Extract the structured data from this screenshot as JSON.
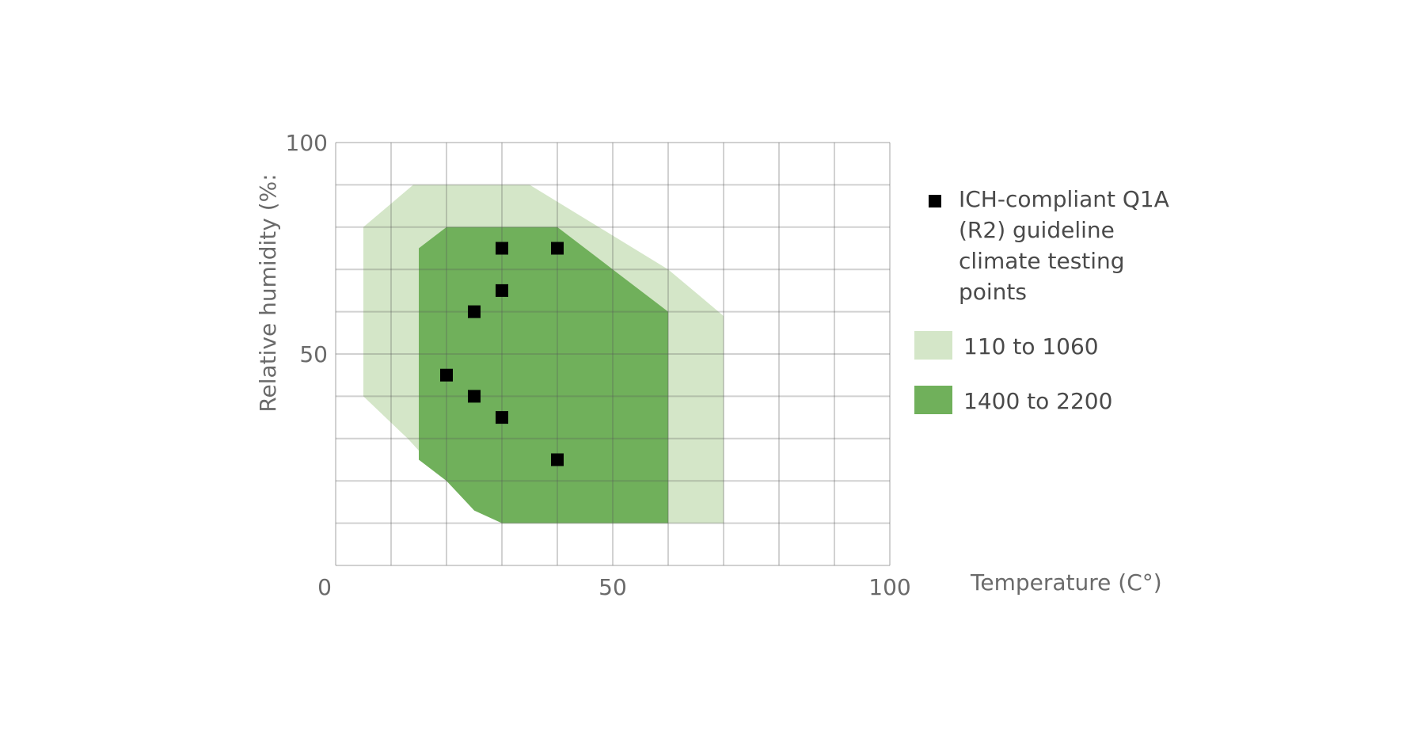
{
  "chart_data": {
    "type": "area",
    "xlabel": "Temperature (C°)",
    "ylabel": "Relative humidity (%:",
    "xlim": [
      0,
      100
    ],
    "ylim": [
      0,
      100
    ],
    "x_ticks": [
      0,
      50,
      100
    ],
    "y_ticks": [
      50,
      100
    ],
    "x_tick_labels": [
      "0",
      "50",
      "100"
    ],
    "y_tick_labels": [
      "50",
      "100"
    ],
    "grid": true,
    "grid_step": 10,
    "legend_position": "right",
    "series": [
      {
        "name": "110 to 1060",
        "kind": "area",
        "color": "#d4e6c8",
        "polygon": [
          [
            14,
            90
          ],
          [
            35,
            90
          ],
          [
            45,
            82
          ],
          [
            60,
            70
          ],
          [
            70,
            59
          ],
          [
            70,
            10
          ],
          [
            30,
            10
          ],
          [
            20,
            20
          ],
          [
            13,
            30
          ],
          [
            5,
            40
          ],
          [
            5,
            80
          ]
        ]
      },
      {
        "name": "1400 to 2200",
        "kind": "area",
        "color": "#70b05b",
        "polygon": [
          [
            20,
            80
          ],
          [
            40,
            80
          ],
          [
            50,
            70
          ],
          [
            60,
            60
          ],
          [
            60,
            10
          ],
          [
            30,
            10
          ],
          [
            25,
            13
          ],
          [
            20,
            20
          ],
          [
            15,
            25
          ],
          [
            15,
            75
          ]
        ]
      },
      {
        "name": "ICH-compliant Q1A (R2) guideline climate testing points",
        "kind": "scatter",
        "color": "#000000",
        "points": [
          [
            30,
            75
          ],
          [
            40,
            75
          ],
          [
            30,
            65
          ],
          [
            25,
            60
          ],
          [
            20,
            45
          ],
          [
            25,
            40
          ],
          [
            30,
            35
          ],
          [
            40,
            25
          ]
        ]
      }
    ]
  },
  "legend": [
    {
      "label": "ICH-compliant Q1A (R2) guideline climate testing points",
      "symbol": "square",
      "color": "#000000"
    },
    {
      "label": "110 to 1060",
      "symbol": "swatch",
      "color": "#d4e6c8"
    },
    {
      "label": "1400 to 2200",
      "symbol": "swatch",
      "color": "#70b05b"
    }
  ]
}
